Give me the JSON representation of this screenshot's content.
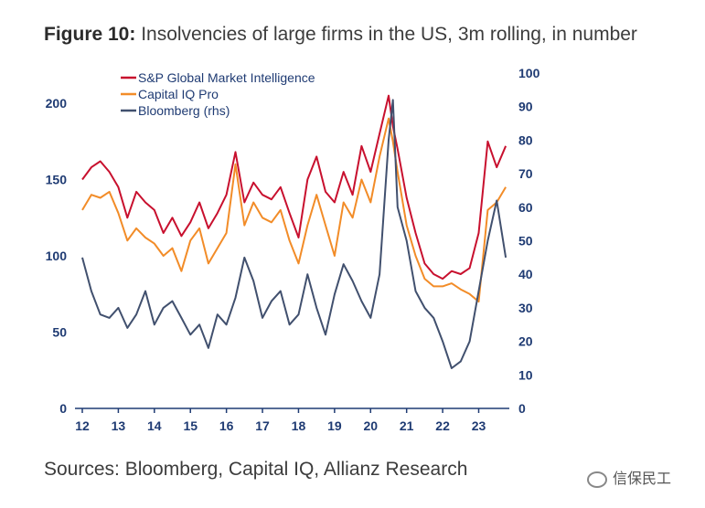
{
  "title": {
    "bold": "Figure 10:",
    "text": " Insolvencies of large firms in the US, 3m rolling, in number"
  },
  "source": "Sources: Bloomberg, Capital IQ, Allianz Research",
  "watermark": "信保民工",
  "chart_data": {
    "type": "line",
    "x_ticks": [
      "12",
      "13",
      "14",
      "15",
      "16",
      "17",
      "18",
      "19",
      "20",
      "21",
      "22",
      "23"
    ],
    "xlim": [
      2012.0,
      2023.85
    ],
    "y_left": {
      "ticks": [
        0,
        50,
        100,
        150,
        200
      ],
      "lim": [
        0,
        200
      ]
    },
    "y_right": {
      "ticks": [
        0,
        10,
        20,
        30,
        40,
        50,
        60,
        70,
        80,
        90,
        100
      ],
      "lim": [
        0,
        100
      ]
    },
    "grid": false,
    "legend_position": "top-left",
    "series": [
      {
        "name": "S&P Global Market Intelligence",
        "axis": "left",
        "color": "#c8102e",
        "x": [
          2012.0,
          2012.25,
          2012.5,
          2012.75,
          2013.0,
          2013.25,
          2013.5,
          2013.75,
          2014.0,
          2014.25,
          2014.5,
          2014.75,
          2015.0,
          2015.25,
          2015.5,
          2015.75,
          2016.0,
          2016.25,
          2016.5,
          2016.75,
          2017.0,
          2017.25,
          2017.5,
          2017.75,
          2018.0,
          2018.25,
          2018.5,
          2018.75,
          2019.0,
          2019.25,
          2019.5,
          2019.75,
          2020.0,
          2020.25,
          2020.5,
          2020.62,
          2020.75,
          2021.0,
          2021.25,
          2021.5,
          2021.75,
          2022.0,
          2022.25,
          2022.5,
          2022.75,
          2023.0,
          2023.25,
          2023.5,
          2023.75
        ],
        "values": [
          150,
          158,
          162,
          155,
          145,
          125,
          142,
          135,
          130,
          115,
          125,
          113,
          122,
          135,
          118,
          128,
          140,
          168,
          135,
          148,
          140,
          137,
          145,
          128,
          112,
          150,
          165,
          142,
          135,
          155,
          140,
          172,
          155,
          180,
          205,
          185,
          170,
          138,
          115,
          95,
          88,
          85,
          90,
          88,
          92,
          115,
          175,
          158,
          172
        ]
      },
      {
        "name": "Capital IQ Pro",
        "axis": "left",
        "color": "#f28c28",
        "x": [
          2012.0,
          2012.25,
          2012.5,
          2012.75,
          2013.0,
          2013.25,
          2013.5,
          2013.75,
          2014.0,
          2014.25,
          2014.5,
          2014.75,
          2015.0,
          2015.25,
          2015.5,
          2015.75,
          2016.0,
          2016.25,
          2016.5,
          2016.75,
          2017.0,
          2017.25,
          2017.5,
          2017.75,
          2018.0,
          2018.25,
          2018.5,
          2018.75,
          2019.0,
          2019.25,
          2019.5,
          2019.75,
          2020.0,
          2020.25,
          2020.5,
          2020.62,
          2020.75,
          2021.0,
          2021.25,
          2021.5,
          2021.75,
          2022.0,
          2022.25,
          2022.5,
          2022.75,
          2023.0,
          2023.25,
          2023.5,
          2023.75
        ],
        "values": [
          130,
          140,
          138,
          142,
          128,
          110,
          118,
          112,
          108,
          100,
          105,
          90,
          110,
          118,
          95,
          105,
          115,
          160,
          120,
          135,
          125,
          122,
          130,
          110,
          95,
          120,
          140,
          120,
          100,
          135,
          125,
          150,
          135,
          165,
          190,
          175,
          155,
          120,
          100,
          85,
          80,
          80,
          82,
          78,
          75,
          70,
          130,
          135,
          145
        ]
      },
      {
        "name": "Bloomberg (rhs)",
        "axis": "right",
        "color": "#41506e",
        "x": [
          2012.0,
          2012.25,
          2012.5,
          2012.75,
          2013.0,
          2013.25,
          2013.5,
          2013.75,
          2014.0,
          2014.25,
          2014.5,
          2014.75,
          2015.0,
          2015.25,
          2015.5,
          2015.75,
          2016.0,
          2016.25,
          2016.5,
          2016.75,
          2017.0,
          2017.25,
          2017.5,
          2017.75,
          2018.0,
          2018.25,
          2018.5,
          2018.75,
          2019.0,
          2019.25,
          2019.5,
          2019.75,
          2020.0,
          2020.25,
          2020.5,
          2020.62,
          2020.75,
          2021.0,
          2021.25,
          2021.5,
          2021.75,
          2022.0,
          2022.25,
          2022.5,
          2022.75,
          2023.0,
          2023.25,
          2023.5,
          2023.75
        ],
        "values": [
          45,
          35,
          28,
          27,
          30,
          24,
          28,
          35,
          25,
          30,
          32,
          27,
          22,
          25,
          18,
          28,
          25,
          33,
          45,
          38,
          27,
          32,
          35,
          25,
          28,
          40,
          30,
          22,
          34,
          43,
          38,
          32,
          27,
          40,
          80,
          92,
          60,
          50,
          35,
          30,
          27,
          20,
          12,
          14,
          20,
          35,
          50,
          62,
          45
        ]
      }
    ]
  }
}
